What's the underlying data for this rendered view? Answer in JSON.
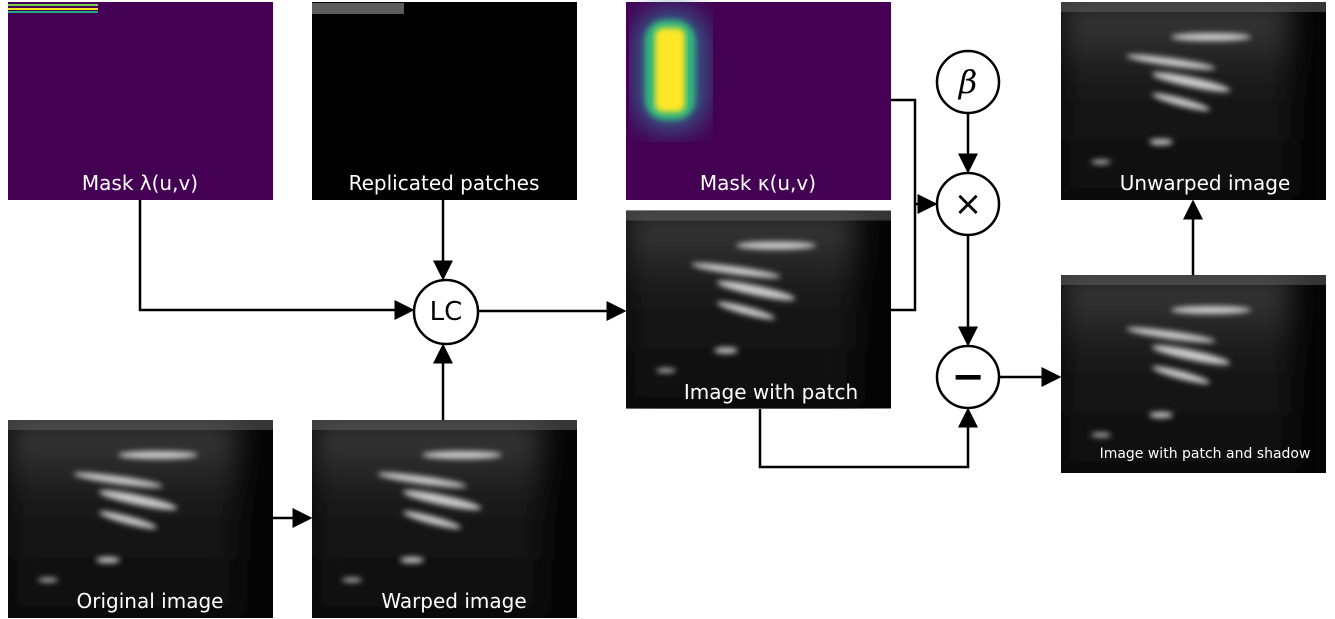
{
  "nodes": {
    "mask_lambda": {
      "label": "Mask λ(u,v)"
    },
    "replicated": {
      "label": "Replicated patches"
    },
    "mask_kappa": {
      "label": "Mask κ(u,v)"
    },
    "image_patch": {
      "label": "Image with patch"
    },
    "original": {
      "label": "Original image"
    },
    "warped": {
      "label": "Warped image"
    },
    "unwarped": {
      "label": "Unwarped image"
    },
    "patch_shadow": {
      "label": "Image with  patch and shadow"
    },
    "lc": {
      "label": "LC"
    },
    "beta": {
      "label": "β"
    },
    "times": {
      "label": "×"
    },
    "minus": {
      "label": "−"
    }
  }
}
